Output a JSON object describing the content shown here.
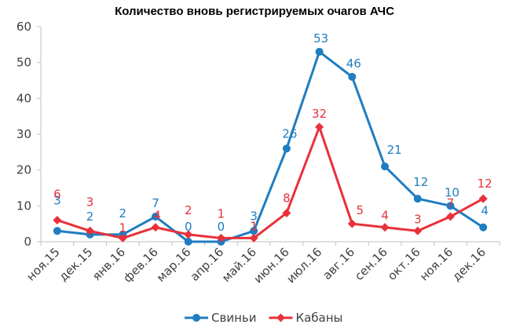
{
  "chart_data": {
    "type": "line",
    "title": "Количество вновь регистрируемых очагов АЧС",
    "categories": [
      "ноя.15",
      "дек.15",
      "янв.16",
      "фев.16",
      "мар.16",
      "апр.16",
      "май.16",
      "июн.16",
      "июл.16",
      "авг.16",
      "сен.16",
      "окт.16",
      "ноя.16",
      "дек.16"
    ],
    "ylim": [
      0,
      60
    ],
    "yticks": [
      0,
      10,
      20,
      30,
      40,
      50,
      60
    ],
    "grid": false,
    "legend": "bottom",
    "series": [
      {
        "name": "Свиньи",
        "color": "#1f7dc1",
        "values": [
          3,
          2,
          2,
          7,
          0,
          0,
          3,
          26,
          53,
          46,
          21,
          12,
          10,
          4
        ]
      },
      {
        "name": "Кабаны",
        "color": "#e8313a",
        "values": [
          6,
          3,
          1,
          4,
          2,
          1,
          1,
          8,
          32,
          5,
          4,
          3,
          7,
          12
        ]
      }
    ]
  }
}
